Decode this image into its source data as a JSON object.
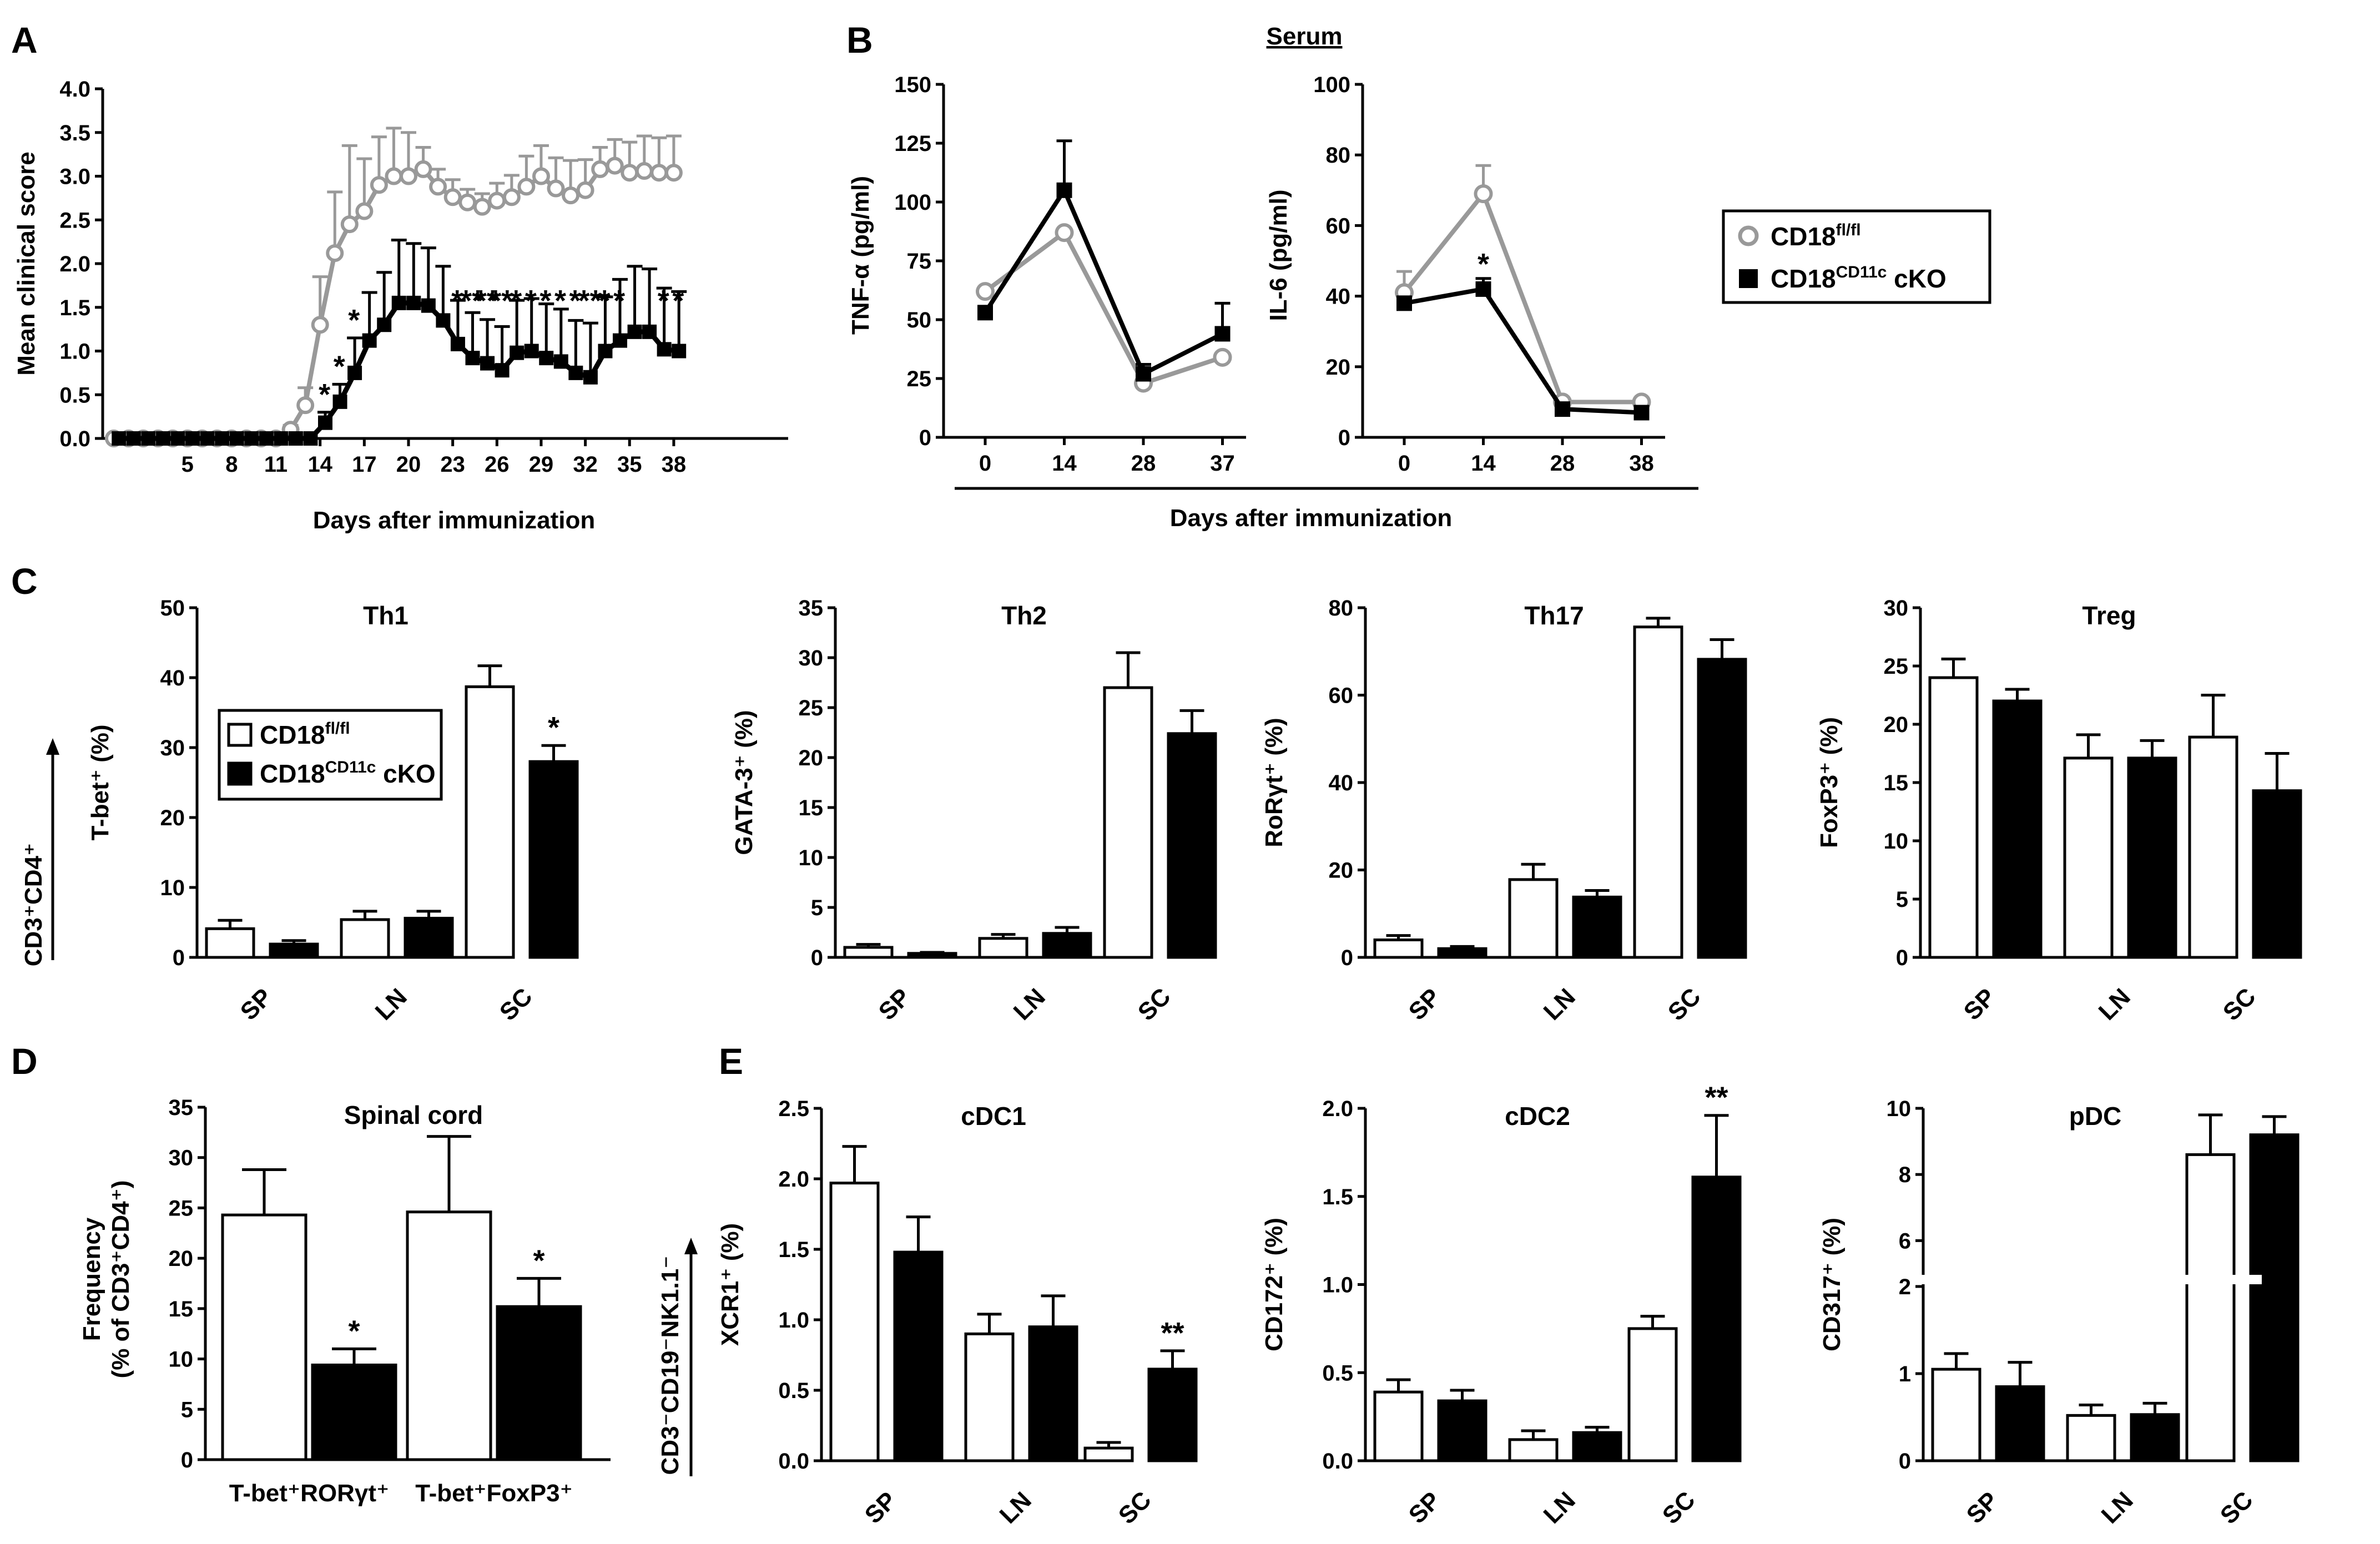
{
  "colors": {
    "wt": "#999999",
    "ko": "#000000",
    "bar_wt": "#ffffff",
    "bar_ko": "#000000"
  },
  "legend": {
    "wt": "CD18",
    "wt_sup": "fl/fl",
    "ko": "CD18",
    "ko_sup": "CD11c",
    "ko_suffix": " cKO"
  },
  "panelA": {
    "letter": "A",
    "chart_data": {
      "type": "line",
      "ylabel": "Mean clinical score",
      "xlabel": "Days after immunization",
      "ylim": [
        0,
        4
      ],
      "yticks": [
        "0.0",
        "0.5",
        "1.0",
        "1.5",
        "2.0",
        "2.5",
        "3.0",
        "3.5",
        "4.0"
      ],
      "xticks": [
        5,
        8,
        11,
        14,
        17,
        20,
        23,
        26,
        29,
        32,
        35,
        38
      ],
      "days": [
        0,
        1,
        2,
        3,
        4,
        5,
        6,
        7,
        8,
        9,
        10,
        11,
        12,
        13,
        14,
        15,
        16,
        17,
        18,
        19,
        20,
        21,
        22,
        23,
        24,
        25,
        26,
        27,
        28,
        29,
        30,
        31,
        32,
        33,
        34,
        35,
        36,
        37,
        38
      ],
      "series": [
        {
          "name": "CD18 fl/fl",
          "values": [
            0,
            0,
            0,
            0,
            0,
            0,
            0,
            0,
            0,
            0,
            0,
            0,
            0.1,
            0.38,
            1.3,
            2.12,
            2.45,
            2.6,
            2.9,
            3.0,
            3.0,
            3.08,
            2.88,
            2.76,
            2.7,
            2.65,
            2.72,
            2.76,
            2.88,
            3.0,
            2.86,
            2.78,
            2.84,
            3.08,
            3.12,
            3.04,
            3.06,
            3.04,
            3.04
          ],
          "errors": [
            0,
            0,
            0,
            0,
            0,
            0,
            0,
            0,
            0,
            0,
            0,
            0,
            0.05,
            0.2,
            0.55,
            0.7,
            0.9,
            0.6,
            0.55,
            0.55,
            0.5,
            0.25,
            0.2,
            0.2,
            0.15,
            0.15,
            0.2,
            0.25,
            0.35,
            0.35,
            0.35,
            0.4,
            0.35,
            0.25,
            0.3,
            0.35,
            0.4,
            0.4,
            0.42
          ]
        },
        {
          "name": "CD18 CD11c cKO",
          "values": [
            0,
            0,
            0,
            0,
            0,
            0,
            0,
            0,
            0,
            0,
            0,
            0,
            0,
            0,
            0.18,
            0.42,
            0.75,
            1.12,
            1.3,
            1.55,
            1.55,
            1.52,
            1.35,
            1.08,
            0.92,
            0.86,
            0.78,
            0.98,
            1.0,
            0.92,
            0.88,
            0.75,
            0.7,
            1.0,
            1.12,
            1.22,
            1.22,
            1.02,
            1.0
          ],
          "errors": [
            0,
            0,
            0,
            0,
            0,
            0,
            0,
            0,
            0,
            0,
            0,
            0,
            0,
            0,
            0.12,
            0.2,
            0.4,
            0.55,
            0.6,
            0.72,
            0.68,
            0.66,
            0.62,
            0.5,
            0.52,
            0.5,
            0.5,
            0.6,
            0.6,
            0.62,
            0.6,
            0.6,
            0.62,
            0.62,
            0.7,
            0.75,
            0.72,
            0.7,
            0.68
          ]
        }
      ],
      "annotations": [
        {
          "day": 14,
          "text": "*"
        },
        {
          "day": 15,
          "text": "*"
        },
        {
          "day": 16,
          "text": "*"
        },
        {
          "day": 23,
          "text": "*"
        },
        {
          "day": 24,
          "text": "**"
        },
        {
          "day": 25,
          "text": "**"
        },
        {
          "day": 26,
          "text": "**"
        },
        {
          "day": 27,
          "text": "*"
        },
        {
          "day": 28,
          "text": "*"
        },
        {
          "day": 29,
          "text": "*"
        },
        {
          "day": 30,
          "text": "*"
        },
        {
          "day": 31,
          "text": "*"
        },
        {
          "day": 32,
          "text": "**"
        },
        {
          "day": 33,
          "text": "*"
        },
        {
          "day": 34,
          "text": "*"
        },
        {
          "day": 37,
          "text": "*"
        },
        {
          "day": 38,
          "text": "*"
        }
      ]
    }
  },
  "panelB": {
    "letter": "B",
    "title": "Serum",
    "xlabel": "Days after immunization",
    "charts": [
      {
        "type": "line",
        "ylabel": "TNF-α (pg/ml)",
        "ylim": [
          0,
          150
        ],
        "yticks": [
          "0",
          "25",
          "50",
          "75",
          "100",
          "125",
          "150"
        ],
        "categories": [
          "0",
          "14",
          "28",
          "37"
        ],
        "series": [
          {
            "name": "CD18 fl/fl",
            "values": [
              62,
              87,
              23,
              34
            ],
            "errors": [
              0,
              0,
              0,
              0
            ]
          },
          {
            "name": "CD18 CD11c cKO",
            "values": [
              53,
              105,
              27,
              44
            ],
            "errors": [
              0,
              21,
              4,
              13
            ]
          }
        ]
      },
      {
        "type": "line",
        "ylabel": "IL-6 (pg/ml)",
        "ylim": [
          0,
          100
        ],
        "yticks": [
          "0",
          "20",
          "40",
          "60",
          "80",
          "100"
        ],
        "categories": [
          "0",
          "14",
          "28",
          "38"
        ],
        "annotation": "*",
        "series": [
          {
            "name": "CD18 fl/fl",
            "values": [
              41,
              69,
              10,
              10
            ],
            "errors": [
              6,
              8,
              0,
              0
            ]
          },
          {
            "name": "CD18 CD11c cKO",
            "values": [
              38,
              42,
              8,
              7
            ],
            "errors": [
              0,
              3,
              0,
              0
            ]
          }
        ]
      }
    ]
  },
  "panelC": {
    "letter": "C",
    "group_label": "CD3⁺CD4⁺",
    "charts": [
      {
        "type": "bar",
        "title": "Th1",
        "ylabel": "T-bet⁺ (%)",
        "ylim": [
          0,
          50
        ],
        "yticks": [
          "0",
          "10",
          "20",
          "30",
          "40",
          "50"
        ],
        "categories": [
          "SP",
          "LN",
          "SC"
        ],
        "series": [
          {
            "name": "CD18 fl/fl",
            "values": [
              4.1,
              5.4,
              38.7
            ],
            "errors": [
              1.2,
              1.2,
              3.0
            ]
          },
          {
            "name": "CD18 CD11c cKO",
            "values": [
              1.9,
              5.6,
              28.0
            ],
            "errors": [
              0.5,
              1.0,
              2.3
            ]
          }
        ],
        "annotations": [
          "",
          "",
          "*"
        ]
      },
      {
        "type": "bar",
        "title": "Th2",
        "ylabel": "GATA-3⁺ (%)",
        "ylim": [
          0,
          35
        ],
        "yticks": [
          "0",
          "5",
          "10",
          "15",
          "20",
          "25",
          "30",
          "35"
        ],
        "categories": [
          "SP",
          "LN",
          "SC"
        ],
        "series": [
          {
            "name": "CD18 fl/fl",
            "values": [
              1.0,
              1.9,
              27.0
            ],
            "errors": [
              0.3,
              0.4,
              3.5
            ]
          },
          {
            "name": "CD18 CD11c cKO",
            "values": [
              0.4,
              2.4,
              22.4
            ],
            "errors": [
              0.1,
              0.6,
              2.3
            ]
          }
        ],
        "annotations": [
          "",
          "",
          ""
        ]
      },
      {
        "type": "bar",
        "title": "Th17",
        "ylabel": "RoRγt⁺ (%)",
        "ylim": [
          0,
          80
        ],
        "yticks": [
          "0",
          "20",
          "40",
          "60",
          "80"
        ],
        "categories": [
          "SP",
          "LN",
          "SC"
        ],
        "series": [
          {
            "name": "CD18 fl/fl",
            "values": [
              4.0,
              17.8,
              75.6
            ],
            "errors": [
              1.0,
              3.5,
              2.0
            ]
          },
          {
            "name": "CD18 CD11c cKO",
            "values": [
              2.0,
              13.8,
              68.2
            ],
            "errors": [
              0.5,
              1.5,
              4.5
            ]
          }
        ],
        "annotations": [
          "",
          "",
          ""
        ]
      },
      {
        "type": "bar",
        "title": "Treg",
        "ylabel": "FoxP3⁺ (%)",
        "ylim": [
          0,
          30
        ],
        "yticks": [
          "0",
          "5",
          "10",
          "15",
          "20",
          "25",
          "30"
        ],
        "categories": [
          "SP",
          "LN",
          "SC"
        ],
        "series": [
          {
            "name": "CD18 fl/fl",
            "values": [
              24.0,
              17.1,
              18.9
            ],
            "errors": [
              1.6,
              2.0,
              3.6
            ]
          },
          {
            "name": "CD18 CD11c cKO",
            "values": [
              22.0,
              17.1,
              14.3
            ],
            "errors": [
              1.0,
              1.5,
              3.2
            ]
          }
        ],
        "annotations": [
          "",
          "",
          ""
        ]
      }
    ]
  },
  "panelD": {
    "letter": "D",
    "chart_data": {
      "type": "bar",
      "title": "Spinal cord",
      "ylabel1": "Frequency",
      "ylabel2": "(% of CD3⁺CD4⁺)",
      "ylim": [
        0,
        35
      ],
      "yticks": [
        "0",
        "5",
        "10",
        "15",
        "20",
        "25",
        "30",
        "35"
      ],
      "categories": [
        "T-bet⁺RORγt⁺",
        "T-bet⁺FoxP3⁺"
      ],
      "series": [
        {
          "name": "CD18 fl/fl",
          "values": [
            24.3,
            24.6
          ],
          "errors": [
            4.5,
            7.5
          ]
        },
        {
          "name": "CD18 CD11c cKO",
          "values": [
            9.4,
            15.2
          ],
          "errors": [
            1.6,
            2.8
          ]
        }
      ],
      "annotations": [
        "*",
        "*"
      ]
    }
  },
  "panelE": {
    "letter": "E",
    "group_label": "CD3⁻CD19⁻NK1.1⁻",
    "charts": [
      {
        "type": "bar",
        "title": "cDC1",
        "ylabel": "XCR1⁺ (%)",
        "ylim": [
          0,
          2.5
        ],
        "yticks": [
          "0.0",
          "0.5",
          "1.0",
          "1.5",
          "2.0",
          "2.5"
        ],
        "categories": [
          "SP",
          "LN",
          "SC"
        ],
        "series": [
          {
            "name": "CD18 fl/fl",
            "values": [
              1.97,
              0.9,
              0.09
            ],
            "errors": [
              0.26,
              0.14,
              0.04
            ]
          },
          {
            "name": "CD18 CD11c cKO",
            "values": [
              1.48,
              0.95,
              0.65
            ],
            "errors": [
              0.25,
              0.22,
              0.13
            ]
          }
        ],
        "annotations": [
          "",
          "",
          "**"
        ]
      },
      {
        "type": "bar",
        "title": "cDC2",
        "ylabel": "CD172⁺ (%)",
        "ylim": [
          0,
          2.0
        ],
        "yticks": [
          "0.0",
          "0.5",
          "1.0",
          "1.5",
          "2.0"
        ],
        "categories": [
          "SP",
          "LN",
          "SC"
        ],
        "series": [
          {
            "name": "CD18 fl/fl",
            "values": [
              0.39,
              0.12,
              0.75
            ],
            "errors": [
              0.07,
              0.05,
              0.07
            ]
          },
          {
            "name": "CD18 CD11c cKO",
            "values": [
              0.34,
              0.16,
              1.61
            ],
            "errors": [
              0.06,
              0.03,
              0.35
            ]
          }
        ],
        "annotations": [
          "",
          "",
          "**"
        ]
      },
      {
        "type": "bar",
        "title": "pDC",
        "ylabel": "CD317⁺ (%)",
        "ylim": [
          0,
          10
        ],
        "axis_break": [
          2,
          5
        ],
        "yticks_low": [
          "0",
          "1",
          "2"
        ],
        "yticks_high": [
          "6",
          "8",
          "10"
        ],
        "categories": [
          "SP",
          "LN",
          "SC"
        ],
        "series": [
          {
            "name": "CD18 fl/fl",
            "values": [
              1.05,
              0.52,
              8.6
            ],
            "errors": [
              0.18,
              0.12,
              1.2
            ]
          },
          {
            "name": "CD18 CD11c cKO",
            "values": [
              0.85,
              0.53,
              9.2
            ],
            "errors": [
              0.28,
              0.13,
              0.55
            ]
          }
        ],
        "annotations": [
          "",
          "",
          ""
        ]
      }
    ]
  }
}
